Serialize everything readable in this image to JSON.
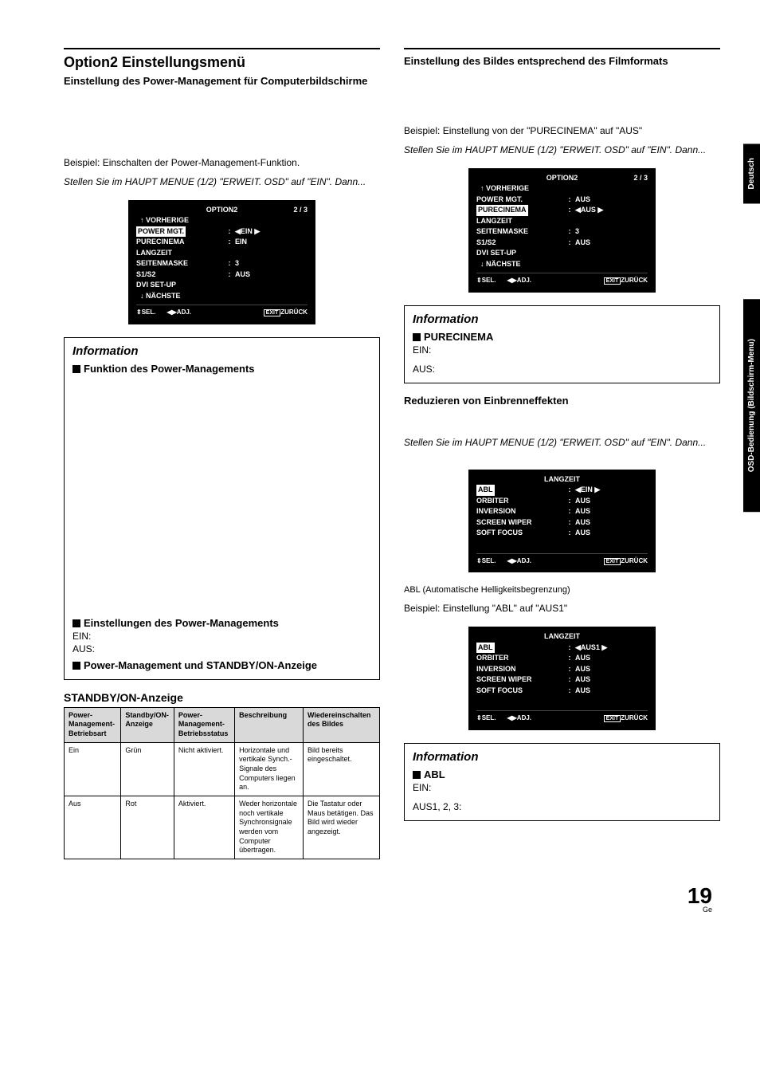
{
  "left": {
    "title": "Option2 Einstellungsmenü",
    "subtitle": "Einstellung des Power-Management für Computerbildschirme",
    "p1": "Beispiel: Einschalten der Power-Management-Funktion.",
    "p2": "Stellen Sie im HAUPT MENUE (1/2) \"ERWEIT. OSD\" auf \"EIN\". Dann...",
    "osd1": {
      "title": "OPTION2",
      "page": "2 / 3",
      "prev": "VORHERIGE",
      "rows": [
        {
          "lbl": "POWER MGT.",
          "val": "EIN",
          "hl": true,
          "arrows": true
        },
        {
          "lbl": "PURECINEMA",
          "val": "EIN"
        },
        {
          "lbl": "LANGZEIT",
          "val": ""
        },
        {
          "lbl": "SEITENMASKE",
          "val": "3"
        },
        {
          "lbl": "S1/S2",
          "val": "AUS"
        },
        {
          "lbl": "DVI SET-UP",
          "val": ""
        }
      ],
      "next": "NÄCHSTE",
      "foot_sel": "SEL.",
      "foot_adj": "ADJ.",
      "foot_exit": "EXIT",
      "foot_back": "ZURÜCK"
    },
    "info1": {
      "title": "Information",
      "b1": "Funktion des Power-Managements",
      "b2": "Einstellungen des Power-Managements",
      "b2_ein": "EIN:",
      "b2_aus": "AUS:",
      "b3": "Power-Management und STANDBY/ON-Anzeige"
    },
    "tbl_title": "STANDBY/ON-Anzeige",
    "tbl": {
      "headers": [
        "Power-Management-Betriebsart",
        "Standby/ON-Anzeige",
        "Power-Management-Betriebsstatus",
        "Beschreibung",
        "Wiedereinschalten des Bildes"
      ],
      "rows": [
        [
          "Ein",
          "Grün",
          "Nicht aktiviert.",
          "Horizontale und vertikale Synch.- Signale des Computers liegen an.",
          "Bild bereits eingeschaltet."
        ],
        [
          "Aus",
          "Rot",
          "Aktiviert.",
          "Weder horizontale noch vertikale Synchronsignale werden vom Computer übertragen.",
          "Die Tastatur oder Maus betätigen. Das Bild wird wieder angezeigt."
        ]
      ]
    }
  },
  "right": {
    "subtitle": "Einstellung des Bildes entsprechend des Filmformats",
    "p1": "Beispiel: Einstellung von der \"PURECINEMA\" auf \"AUS\"",
    "p2": "Stellen Sie im HAUPT MENUE (1/2) \"ERWEIT. OSD\" auf \"EIN\". Dann...",
    "osd2": {
      "title": "OPTION2",
      "page": "2 / 3",
      "prev": "VORHERIGE",
      "rows": [
        {
          "lbl": "POWER MGT.",
          "val": "AUS"
        },
        {
          "lbl": "PURECINEMA",
          "val": "AUS",
          "hl": true,
          "arrows": true
        },
        {
          "lbl": "LANGZEIT",
          "val": ""
        },
        {
          "lbl": "SEITENMASKE",
          "val": "3"
        },
        {
          "lbl": "S1/S2",
          "val": "AUS"
        },
        {
          "lbl": "DVI SET-UP",
          "val": ""
        }
      ],
      "next": "NÄCHSTE",
      "foot_sel": "SEL.",
      "foot_adj": "ADJ.",
      "foot_exit": "EXIT",
      "foot_back": "ZURÜCK"
    },
    "info2": {
      "title": "Information",
      "b1": "PURECINEMA",
      "ein": "EIN:",
      "aus": "AUS:"
    },
    "sec2_title": "Reduzieren von Einbrenneffekten",
    "sec2_p2": "Stellen Sie im HAUPT MENUE (1/2) \"ERWEIT. OSD\" auf \"EIN\". Dann...",
    "osd3": {
      "title": "LANGZEIT",
      "rows": [
        {
          "lbl": "ABL",
          "val": "EIN",
          "hl": true,
          "arrows": true
        },
        {
          "lbl": "ORBITER",
          "val": "AUS"
        },
        {
          "lbl": "INVERSION",
          "val": "AUS"
        },
        {
          "lbl": "SCREEN WIPER",
          "val": "AUS"
        },
        {
          "lbl": "SOFT FOCUS",
          "val": "AUS"
        }
      ],
      "foot_sel": "SEL.",
      "foot_adj": "ADJ.",
      "foot_exit": "EXIT",
      "foot_back": "ZURÜCK"
    },
    "caption_abl": "ABL (Automatische Helligkeitsbegrenzung)",
    "p3": "Beispiel: Einstellung \"ABL\" auf \"AUS1\"",
    "osd4": {
      "title": "LANGZEIT",
      "rows": [
        {
          "lbl": "ABL",
          "val": "AUS1",
          "hl": true,
          "arrows": true
        },
        {
          "lbl": "ORBITER",
          "val": "AUS"
        },
        {
          "lbl": "INVERSION",
          "val": "AUS"
        },
        {
          "lbl": "SCREEN WIPER",
          "val": "AUS"
        },
        {
          "lbl": "SOFT FOCUS",
          "val": "AUS"
        }
      ],
      "foot_sel": "SEL.",
      "foot_adj": "ADJ.",
      "foot_exit": "EXIT",
      "foot_back": "ZURÜCK"
    },
    "info3": {
      "title": "Information",
      "b1": "ABL",
      "ein": "EIN:",
      "aus": "AUS1, 2, 3:"
    }
  },
  "sidetabs": {
    "t1": "Deutsch",
    "t2": "OSD-Bedienung (Bildschirm-Menu)"
  },
  "pagenum": {
    "n": "19",
    "s": "Ge"
  }
}
